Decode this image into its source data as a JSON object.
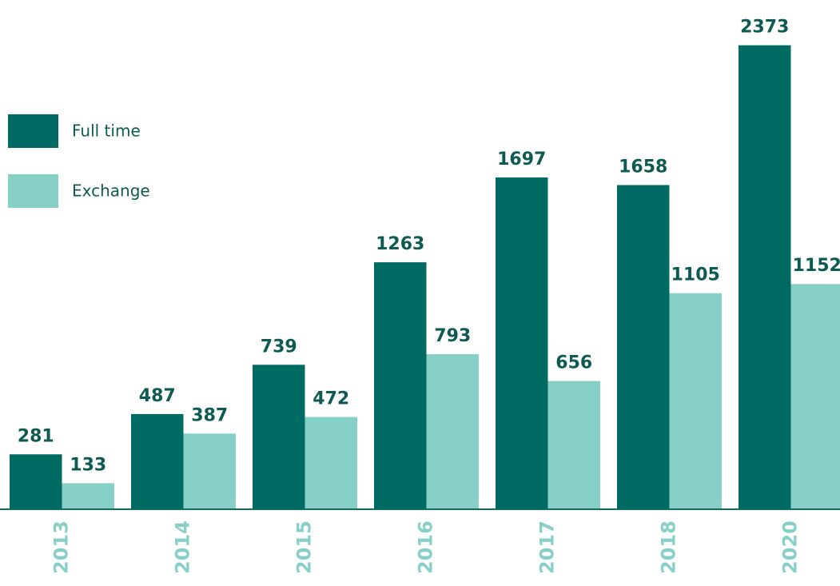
{
  "chart_data": {
    "type": "bar",
    "categories": [
      "2013",
      "2014",
      "2015",
      "2016",
      "2017",
      "2018",
      "2020"
    ],
    "series": [
      {
        "name": "Full time",
        "color": "#006b63",
        "values": [
          281,
          487,
          739,
          1263,
          1697,
          1658,
          2373
        ]
      },
      {
        "name": "Exchange",
        "color": "#86d0c8",
        "values": [
          133,
          387,
          472,
          793,
          656,
          1105,
          1152
        ]
      }
    ],
    "ylim": [
      0,
      2400
    ],
    "legend": "upper left"
  }
}
